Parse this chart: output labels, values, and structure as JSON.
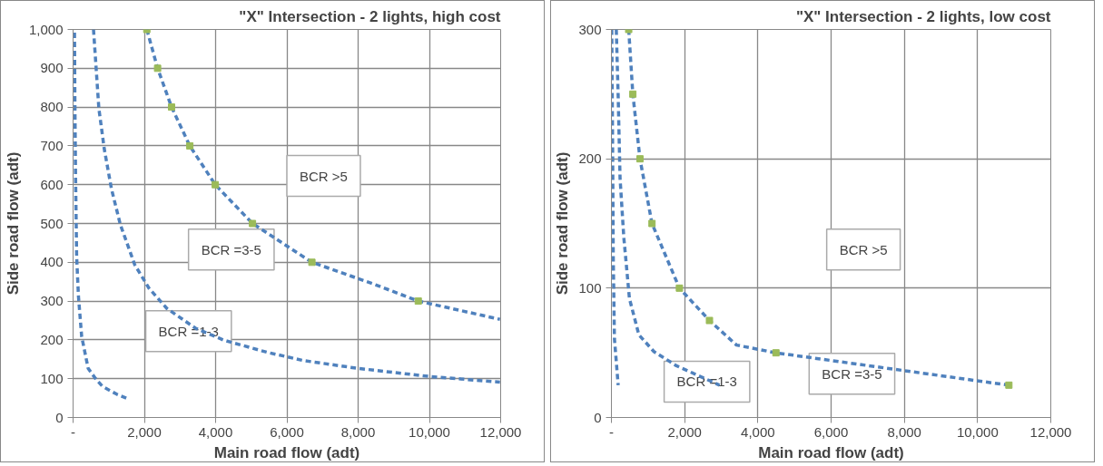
{
  "chart_data": [
    {
      "type": "line",
      "title": "\"X\" Intersection - 2 lights, high cost",
      "xlabel": "Main road flow (adt)",
      "ylabel": "Side road flow (adt)",
      "xlim": [
        0,
        12000
      ],
      "xticks": [
        {
          "value": 0,
          "label": "-"
        },
        {
          "value": 2000,
          "label": "2,000"
        },
        {
          "value": 4000,
          "label": "4,000"
        },
        {
          "value": 6000,
          "label": "6,000"
        },
        {
          "value": 8000,
          "label": "8,000"
        },
        {
          "value": 10000,
          "label": "10,000"
        },
        {
          "value": 12000,
          "label": "12,000"
        }
      ],
      "ylim": [
        0,
        1000
      ],
      "yticks": [
        0,
        100,
        200,
        300,
        400,
        500,
        600,
        700,
        800,
        900,
        {
          "value": 1000,
          "label": "1,000"
        }
      ],
      "grid": true,
      "line_style": "dashed",
      "series": [
        {
          "color": "#4f81bd",
          "x": [
            40,
            50,
            70,
            100,
            151,
            241,
            422,
            623,
            824,
            1226,
            1578
          ],
          "values": [
            992,
            827,
            621,
            415,
            312,
            209,
            127,
            101,
            80,
            60,
            47
          ]
        },
        {
          "color": "#4f81bd",
          "x": [
            573,
            724,
            874,
            1075,
            1327,
            1729,
            2131,
            2633,
            3437,
            4241,
            5447,
            6452,
            7960,
            9970,
            11980
          ],
          "values": [
            1000,
            796,
            693,
            590,
            497,
            394,
            333,
            281,
            230,
            199,
            168,
            147,
            127,
            106,
            91
          ]
        },
        {
          "color": "#4f81bd",
          "x": [
            2070,
            2372,
            2764,
            3276,
            3990,
            5035,
            6703,
            8462,
            9688,
            11980
          ],
          "values": [
            1000,
            900,
            800,
            700,
            600,
            500,
            400,
            343,
            300,
            253
          ]
        },
        {
          "type": "scatter",
          "marker": "square",
          "color": "#9bbb59",
          "x": [
            2070,
            2372,
            2764,
            3276,
            3990,
            5035,
            6703,
            9688
          ],
          "values": [
            1000,
            900,
            800,
            700,
            600,
            500,
            400,
            300
          ]
        }
      ],
      "annotations": [
        "BCR >5",
        "BCR =3-5",
        "BCR =1-3"
      ]
    },
    {
      "type": "line",
      "title": "\"X\" Intersection - 2 lights, low cost",
      "xlabel": "Main road flow (adt)",
      "ylabel": "Side road flow (adt)",
      "xlim": [
        0,
        12000
      ],
      "xticks": [
        {
          "value": 0,
          "label": "-"
        },
        {
          "value": 2000,
          "label": "2,000"
        },
        {
          "value": 4000,
          "label": "4,000"
        },
        {
          "value": 6000,
          "label": "6,000"
        },
        {
          "value": 8000,
          "label": "8,000"
        },
        {
          "value": 10000,
          "label": "10,000"
        },
        {
          "value": 12000,
          "label": "12,000"
        }
      ],
      "ylim": [
        0,
        300
      ],
      "yticks": [
        0,
        100,
        200,
        300
      ],
      "grid": true,
      "line_style": "dashed",
      "series": [
        {
          "color": "#4f81bd",
          "x": [
            10,
            31,
            51,
            82,
            185
          ],
          "values": [
            300,
            217,
            123,
            61,
            25
          ]
        },
        {
          "color": "#4f81bd",
          "x": [
            133,
            185,
            236,
            339,
            492,
            749,
            1159,
            1775,
            2955
          ],
          "values": [
            300,
            248,
            185,
            139,
            92,
            64,
            51,
            40,
            25
          ]
        },
        {
          "color": "#4f81bd",
          "x": [
            472,
            585,
            780,
            1108,
            1857,
            2678,
            3417,
            4494,
            10855
          ],
          "values": [
            300,
            250,
            200,
            150,
            100,
            75,
            56,
            50,
            25
          ]
        },
        {
          "type": "scatter",
          "marker": "square",
          "color": "#9bbb59",
          "x": [
            472,
            585,
            780,
            1108,
            1857,
            2678,
            4494,
            10855
          ],
          "values": [
            300,
            250,
            200,
            150,
            100,
            75,
            50,
            25
          ]
        }
      ],
      "annotations": [
        "BCR >5",
        "BCR =3-5",
        "BCR =1-3"
      ]
    }
  ]
}
